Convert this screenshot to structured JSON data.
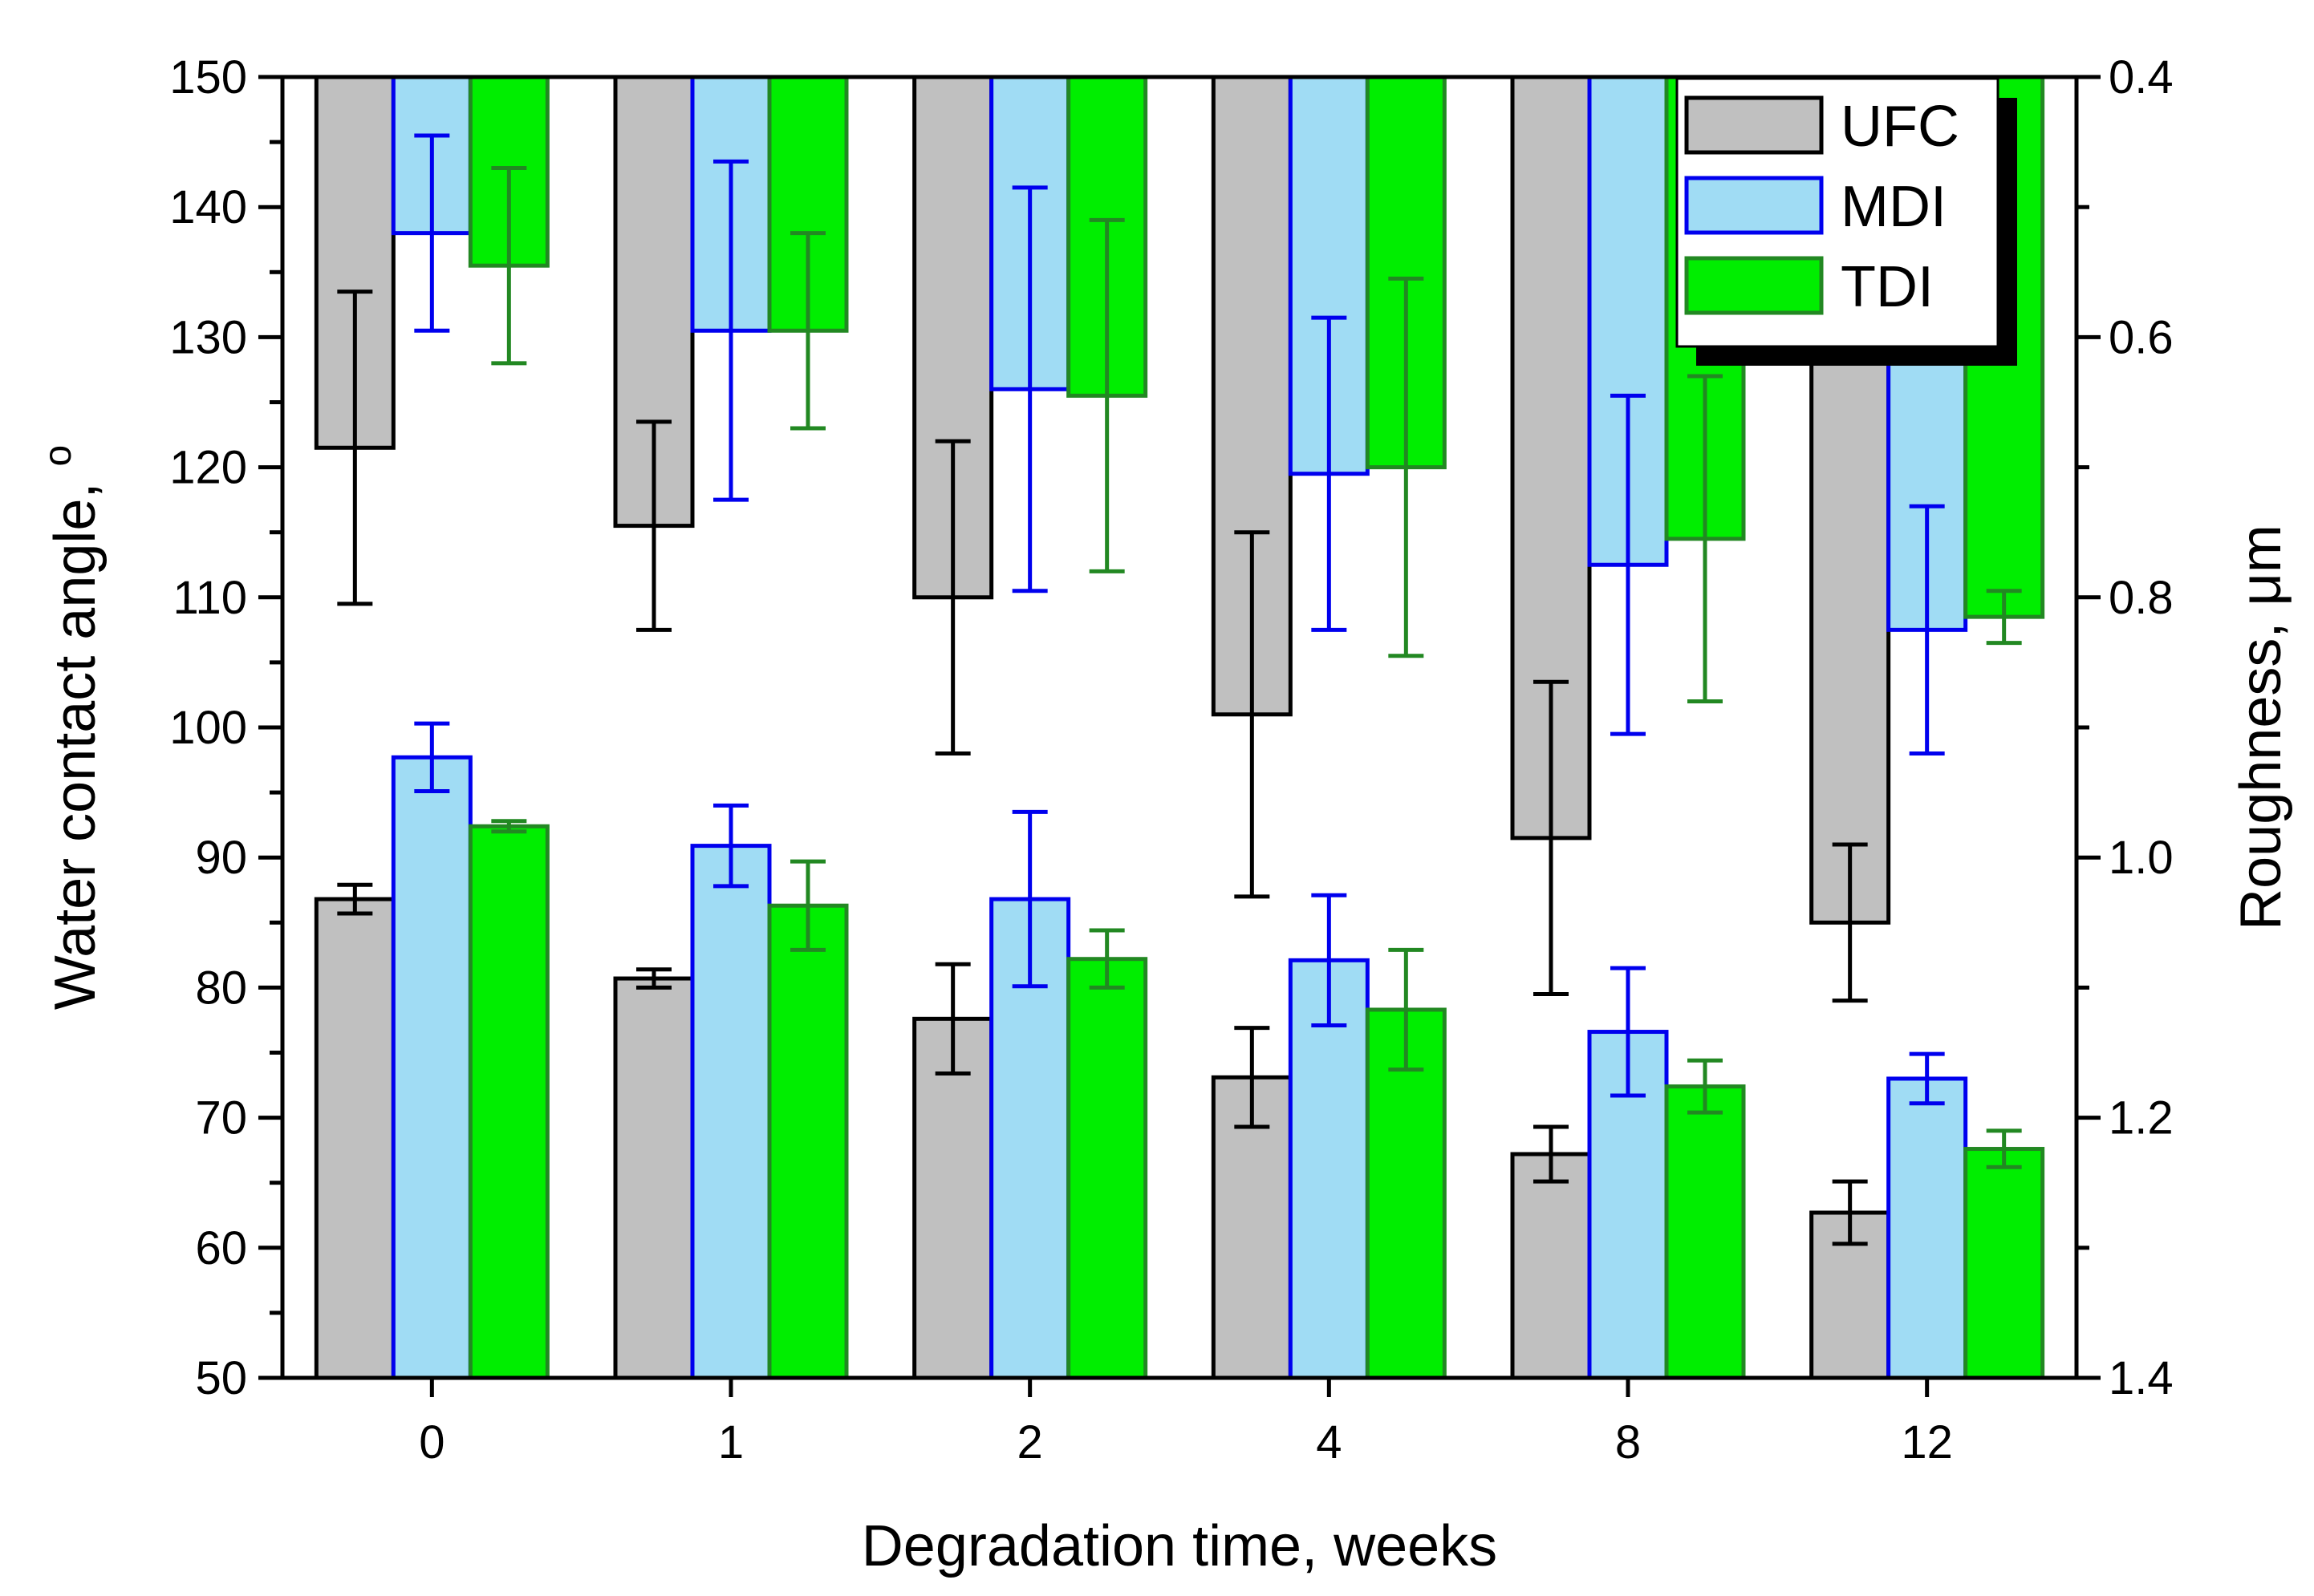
{
  "chart_data": {
    "type": "bar",
    "title": "",
    "xlabel": "Degradation time, weeks",
    "ylabel": "Water contact angle, ",
    "ylabel_superscript": "o",
    "y2label": "Roughness, μm",
    "categories": [
      "0",
      "1",
      "2",
      "4",
      "8",
      "12"
    ],
    "ylim": [
      50,
      150
    ],
    "yticks": [
      "50",
      "60",
      "70",
      "80",
      "90",
      "100",
      "110",
      "120",
      "130",
      "140",
      "150"
    ],
    "y2lim": [
      0.4,
      1.4
    ],
    "y2ticks": [
      "0.4",
      "0.6",
      "0.8",
      "1.0",
      "1.2",
      "1.4"
    ],
    "legend_position": "top-right",
    "series": [
      {
        "name": "UFC",
        "fill": "#c0c0c0",
        "stroke": "#000000",
        "errcolor": "#000000",
        "contact_angle": [
          86.8,
          80.7,
          77.6,
          73.1,
          67.2,
          62.7
        ],
        "contact_angle_err": [
          1.1,
          0.7,
          4.2,
          3.8,
          2.1,
          2.4
        ],
        "roughness": [
          0.685,
          0.745,
          0.8,
          0.89,
          0.985,
          1.05
        ],
        "roughness_err": [
          0.12,
          0.08,
          0.12,
          0.14,
          0.12,
          0.06
        ]
      },
      {
        "name": "MDI",
        "fill": "#a0dcf4",
        "stroke": "#0000ee",
        "errcolor": "#0000ee",
        "contact_angle": [
          97.7,
          90.9,
          86.8,
          82.1,
          76.6,
          73.0
        ],
        "contact_angle_err": [
          2.6,
          3.1,
          6.7,
          5.0,
          4.9,
          1.9
        ],
        "roughness": [
          0.52,
          0.595,
          0.64,
          0.705,
          0.775,
          0.825
        ],
        "roughness_err": [
          0.075,
          0.13,
          0.155,
          0.12,
          0.13,
          0.095
        ]
      },
      {
        "name": "TDI",
        "fill": "#00ee00",
        "stroke": "#228822",
        "errcolor": "#228822",
        "contact_angle": [
          92.4,
          86.3,
          82.2,
          78.3,
          72.4,
          67.6
        ],
        "contact_angle_err": [
          0.4,
          3.4,
          2.2,
          4.6,
          2.0,
          1.4
        ],
        "roughness": [
          0.545,
          0.595,
          0.645,
          0.7,
          0.755,
          0.815
        ],
        "roughness_err": [
          0.075,
          0.075,
          0.135,
          0.145,
          0.125,
          0.02
        ]
      }
    ]
  }
}
